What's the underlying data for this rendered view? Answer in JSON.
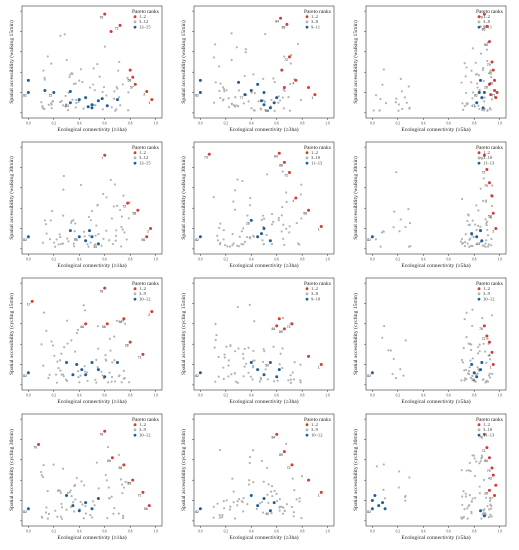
{
  "colors": {
    "red": "#d83a35",
    "gray": "#b3b3b3",
    "blue": "#1d5f9a",
    "text": "#222222"
  },
  "xticks": [
    "0.0",
    "0.2",
    "0.4",
    "0.6",
    "0.8",
    "1.0"
  ],
  "ytick_values": [
    0.0,
    0.2,
    0.4,
    0.6,
    0.8,
    1.0
  ],
  "chart_data": [
    {
      "type": "scatter",
      "xlabel": "Ecological connectivity (≥1ha)",
      "ylabel": "Spatial accessibility (walking 15min)",
      "legend_title": "Pareto ranks",
      "legend": [
        "1–2",
        "3–12",
        "13–15"
      ],
      "red": [
        [
          0.6,
          0.97
        ],
        [
          0.72,
          0.86
        ],
        [
          0.65,
          0.8
        ],
        [
          0.8,
          0.42
        ],
        [
          0.82,
          0.35
        ],
        [
          0.84,
          0.28
        ],
        [
          0.93,
          0.21
        ],
        [
          0.97,
          0.13
        ]
      ],
      "blue": [
        [
          0.0,
          0.32
        ],
        [
          0.0,
          0.2
        ],
        [
          0.13,
          0.22
        ],
        [
          0.2,
          0.2
        ],
        [
          0.33,
          0.21
        ],
        [
          0.33,
          0.1
        ],
        [
          0.4,
          0.13
        ],
        [
          0.45,
          0.15
        ],
        [
          0.5,
          0.08
        ],
        [
          0.55,
          0.12
        ],
        [
          0.58,
          0.14
        ],
        [
          0.62,
          0.07
        ],
        [
          0.7,
          0.13
        ],
        [
          0.5,
          0.05
        ],
        [
          0.47,
          0.06
        ]
      ],
      "labels": [
        [
          "76",
          0.6,
          0.97
        ],
        [
          "72",
          0.72,
          0.86
        ],
        [
          "57",
          0.84,
          0.28
        ],
        [
          "58",
          0.82,
          0.35
        ],
        [
          "2",
          0.93,
          0.21
        ],
        [
          "1",
          0.97,
          0.13
        ],
        [
          "82",
          0.0,
          0.2
        ],
        [
          "15",
          0.2,
          0.2
        ],
        [
          "53",
          0.33,
          0.1
        ]
      ]
    },
    {
      "type": "scatter",
      "xlabel": "Ecological connectivity (≥3ha)",
      "ylabel": "Spatial accessibility (walking 15min)",
      "legend_title": "Pareto ranks",
      "legend": [
        "1–2",
        "3–8",
        "9–11"
      ],
      "red": [
        [
          0.63,
          0.93
        ],
        [
          0.68,
          0.87
        ],
        [
          0.7,
          0.55
        ],
        [
          0.75,
          0.32
        ],
        [
          0.85,
          0.25
        ],
        [
          0.9,
          0.18
        ],
        [
          0.64,
          0.42
        ],
        [
          0.66,
          0.25
        ]
      ],
      "blue": [
        [
          0.0,
          0.32
        ],
        [
          0.0,
          0.2
        ],
        [
          0.3,
          0.3
        ],
        [
          0.35,
          0.18
        ],
        [
          0.4,
          0.22
        ],
        [
          0.45,
          0.28
        ],
        [
          0.48,
          0.12
        ],
        [
          0.5,
          0.2
        ],
        [
          0.55,
          0.05
        ],
        [
          0.58,
          0.1
        ],
        [
          0.6,
          0.15
        ],
        [
          0.5,
          0.08
        ]
      ],
      "labels": [
        [
          "84",
          0.63,
          0.93
        ],
        [
          "89",
          0.68,
          0.87
        ],
        [
          "72",
          0.7,
          0.55
        ],
        [
          "4",
          0.75,
          0.32
        ],
        [
          "1",
          0.9,
          0.18
        ],
        [
          "82",
          0.0,
          0.2
        ],
        [
          "60",
          0.55,
          0.05
        ],
        [
          "77",
          0.35,
          0.18
        ]
      ]
    },
    {
      "type": "scatter",
      "xlabel": "Ecological connectivity (≥5ha)",
      "ylabel": "Spatial accessibility (walking 15min)",
      "legend_title": "Pareto ranks",
      "legend": [
        "1–2",
        "3–8",
        "9–11"
      ],
      "red": [
        [
          0.88,
          0.97
        ],
        [
          0.9,
          0.85
        ],
        [
          0.92,
          0.7
        ],
        [
          0.94,
          0.5
        ],
        [
          0.95,
          0.42
        ],
        [
          0.96,
          0.32
        ],
        [
          0.92,
          0.28
        ],
        [
          0.96,
          0.22
        ],
        [
          0.98,
          0.2
        ],
        [
          0.93,
          0.18
        ],
        [
          0.97,
          0.15
        ]
      ],
      "blue": [
        [
          0.85,
          0.32
        ],
        [
          0.84,
          0.2
        ],
        [
          0.86,
          0.15
        ],
        [
          0.82,
          0.1
        ],
        [
          0.87,
          0.05
        ],
        [
          0.88,
          0.2
        ]
      ],
      "labels": [
        [
          "76",
          0.88,
          0.97
        ],
        [
          "85",
          0.9,
          0.85
        ],
        [
          "86",
          0.92,
          0.7
        ],
        [
          "79",
          0.94,
          0.5
        ],
        [
          "43",
          0.95,
          0.42
        ],
        [
          "58",
          0.96,
          0.32
        ],
        [
          "28",
          0.92,
          0.28
        ],
        [
          "71",
          0.98,
          0.2
        ],
        [
          "82",
          0.84,
          0.2
        ],
        [
          "67",
          0.82,
          0.1
        ]
      ]
    },
    {
      "type": "scatter",
      "xlabel": "Ecological connectivity (≥1ha)",
      "ylabel": "Spatial accessibility (walking 30min)",
      "legend_title": "Pareto ranks",
      "legend": [
        "1–2",
        "3–12",
        "13–15"
      ],
      "red": [
        [
          0.6,
          0.92
        ],
        [
          0.78,
          0.45
        ],
        [
          0.86,
          0.38
        ],
        [
          0.96,
          0.2
        ],
        [
          0.93,
          0.12
        ]
      ],
      "blue": [
        [
          0.0,
          0.12
        ],
        [
          0.33,
          0.18
        ],
        [
          0.4,
          0.12
        ],
        [
          0.45,
          0.08
        ],
        [
          0.5,
          0.12
        ],
        [
          0.55,
          0.05
        ],
        [
          0.48,
          0.18
        ]
      ],
      "labels": [
        [
          "7",
          0.6,
          0.92
        ],
        [
          "72",
          0.78,
          0.45
        ],
        [
          "58",
          0.86,
          0.38
        ],
        [
          "2",
          0.96,
          0.2
        ],
        [
          "56",
          0.93,
          0.12
        ],
        [
          "82",
          0.0,
          0.12
        ],
        [
          "34",
          0.55,
          0.05
        ],
        [
          "15",
          0.4,
          0.12
        ]
      ]
    },
    {
      "type": "scatter",
      "xlabel": "Ecological connectivity (≥3ha)",
      "ylabel": "Spatial accessibility (walking 30min)",
      "legend_title": "Pareto ranks",
      "legend": [
        "1–2",
        "3–10",
        "11–13"
      ],
      "red": [
        [
          0.07,
          0.93
        ],
        [
          0.62,
          0.94
        ],
        [
          0.66,
          0.85
        ],
        [
          0.7,
          0.75
        ],
        [
          0.75,
          0.5
        ],
        [
          0.85,
          0.38
        ],
        [
          0.95,
          0.22
        ]
      ],
      "blue": [
        [
          0.0,
          0.12
        ],
        [
          0.4,
          0.28
        ],
        [
          0.45,
          0.12
        ],
        [
          0.5,
          0.2
        ],
        [
          0.55,
          0.08
        ],
        [
          0.48,
          0.15
        ]
      ],
      "labels": [
        [
          "73",
          0.07,
          0.93
        ],
        [
          "84",
          0.62,
          0.94
        ],
        [
          "88",
          0.66,
          0.85
        ],
        [
          "72",
          0.7,
          0.75
        ],
        [
          "4",
          0.75,
          0.5
        ],
        [
          "58",
          0.85,
          0.38
        ],
        [
          "1",
          0.95,
          0.22
        ],
        [
          "82",
          0.0,
          0.12
        ],
        [
          "26",
          0.4,
          0.28
        ]
      ]
    },
    {
      "type": "scatter",
      "xlabel": "Ecological connectivity (≥5ha)",
      "ylabel": "Spatial accessibility (walking 30min)",
      "legend_title": "Pareto ranks",
      "legend": [
        "1–2",
        "3–10",
        "11–13"
      ],
      "red": [
        [
          0.88,
          0.92
        ],
        [
          0.9,
          0.78
        ],
        [
          0.92,
          0.65
        ],
        [
          0.94,
          0.52
        ],
        [
          0.95,
          0.35
        ],
        [
          0.97,
          0.2
        ]
      ],
      "blue": [
        [
          0.0,
          0.12
        ],
        [
          0.78,
          0.15
        ],
        [
          0.82,
          0.12
        ],
        [
          0.85,
          0.18
        ],
        [
          0.86,
          0.08
        ]
      ],
      "labels": [
        [
          "76",
          0.88,
          0.92
        ],
        [
          "72",
          0.9,
          0.78
        ],
        [
          "79",
          0.92,
          0.65
        ],
        [
          "58",
          0.95,
          0.35
        ],
        [
          "2",
          0.97,
          0.2
        ],
        [
          "82",
          0.0,
          0.12
        ],
        [
          "34",
          0.86,
          0.08
        ]
      ]
    },
    {
      "type": "scatter",
      "xlabel": "Ecological connectivity (≥1ha)",
      "ylabel": "Spatial accessibility (cycling 15min)",
      "legend_title": "Pareto ranks",
      "legend": [
        "1–2",
        "3–9",
        "10–12"
      ],
      "red": [
        [
          0.03,
          0.82
        ],
        [
          0.45,
          0.6
        ],
        [
          0.6,
          0.95
        ],
        [
          0.62,
          0.6
        ],
        [
          0.75,
          0.65
        ],
        [
          0.8,
          0.42
        ],
        [
          0.9,
          0.3
        ],
        [
          0.97,
          0.72
        ]
      ],
      "blue": [
        [
          0.0,
          0.12
        ],
        [
          0.3,
          0.22
        ],
        [
          0.35,
          0.1
        ],
        [
          0.38,
          0.2
        ],
        [
          0.42,
          0.15
        ],
        [
          0.45,
          0.1
        ],
        [
          0.5,
          0.22
        ],
        [
          0.55,
          0.15
        ],
        [
          0.6,
          0.08
        ],
        [
          0.7,
          0.22
        ]
      ],
      "labels": [
        [
          "17",
          0.03,
          0.82
        ],
        [
          "66",
          0.45,
          0.6
        ],
        [
          "76",
          0.6,
          0.95
        ],
        [
          "56",
          0.62,
          0.6
        ],
        [
          "58",
          0.75,
          0.65
        ],
        [
          "28",
          0.8,
          0.42
        ],
        [
          "71",
          0.9,
          0.3
        ],
        [
          "2",
          0.97,
          0.72
        ],
        [
          "82",
          0.0,
          0.12
        ]
      ]
    },
    {
      "type": "scatter",
      "xlabel": "Ecological connectivity (≥3ha)",
      "ylabel": "Spatial accessibility (cycling 15min)",
      "legend_title": "Pareto ranks",
      "legend": [
        "1–2",
        "3–8",
        "9–10"
      ],
      "red": [
        [
          0.6,
          0.58
        ],
        [
          0.62,
          0.65
        ],
        [
          0.66,
          0.55
        ],
        [
          0.72,
          0.6
        ],
        [
          0.85,
          0.28
        ],
        [
          0.95,
          0.2
        ]
      ],
      "blue": [
        [
          0.0,
          0.12
        ],
        [
          0.4,
          0.22
        ],
        [
          0.45,
          0.15
        ],
        [
          0.5,
          0.1
        ],
        [
          0.55,
          0.22
        ],
        [
          0.6,
          0.08
        ],
        [
          0.62,
          0.15
        ]
      ],
      "labels": [
        [
          "84",
          0.6,
          0.58
        ],
        [
          "89",
          0.66,
          0.55
        ],
        [
          "72",
          0.72,
          0.6
        ],
        [
          "1",
          0.95,
          0.2
        ],
        [
          "82",
          0.0,
          0.12
        ],
        [
          "50",
          0.55,
          0.22
        ]
      ]
    },
    {
      "type": "scatter",
      "xlabel": "Ecological connectivity (≥5ha)",
      "ylabel": "Spatial accessibility (cycling 15min)",
      "legend_title": "Pareto ranks",
      "legend": [
        "1–2",
        "3–9",
        "10–12"
      ],
      "red": [
        [
          0.88,
          0.58
        ],
        [
          0.9,
          0.48
        ],
        [
          0.92,
          0.42
        ],
        [
          0.94,
          0.32
        ],
        [
          0.95,
          0.2
        ]
      ],
      "blue": [
        [
          0.0,
          0.12
        ],
        [
          0.78,
          0.2
        ],
        [
          0.8,
          0.12
        ],
        [
          0.82,
          0.08
        ],
        [
          0.85,
          0.15
        ],
        [
          0.86,
          0.22
        ]
      ],
      "labels": [
        [
          "76",
          0.88,
          0.58
        ],
        [
          "72",
          0.9,
          0.48
        ],
        [
          "4",
          0.94,
          0.32
        ],
        [
          "1",
          0.95,
          0.2
        ],
        [
          "82",
          0.0,
          0.12
        ],
        [
          "56",
          0.82,
          0.08
        ]
      ]
    },
    {
      "type": "scatter",
      "xlabel": "Ecological connectivity (≥1ha)",
      "ylabel": "Spatial accessibility (cycling 30min)",
      "legend_title": "Pareto ranks",
      "legend": [
        "1–2",
        "3–9",
        "10–12"
      ],
      "red": [
        [
          0.08,
          0.75
        ],
        [
          0.6,
          0.88
        ],
        [
          0.66,
          0.62
        ],
        [
          0.75,
          0.55
        ],
        [
          0.82,
          0.4
        ],
        [
          0.9,
          0.28
        ],
        [
          0.95,
          0.15
        ]
      ],
      "blue": [
        [
          0.0,
          0.12
        ],
        [
          0.3,
          0.25
        ],
        [
          0.35,
          0.15
        ],
        [
          0.4,
          0.1
        ],
        [
          0.45,
          0.18
        ],
        [
          0.5,
          0.12
        ],
        [
          0.55,
          0.22
        ]
      ],
      "labels": [
        [
          "70",
          0.08,
          0.75
        ],
        [
          "76",
          0.6,
          0.88
        ],
        [
          "66",
          0.66,
          0.62
        ],
        [
          "58",
          0.75,
          0.55
        ],
        [
          "28",
          0.82,
          0.4
        ],
        [
          "71",
          0.9,
          0.28
        ],
        [
          "56",
          0.95,
          0.15
        ],
        [
          "82",
          0.0,
          0.12
        ]
      ]
    },
    {
      "type": "scatter",
      "xlabel": "Ecological connectivity (≥3ha)",
      "ylabel": "Spatial accessibility (cycling 30min)",
      "legend_title": "Pareto ranks",
      "legend": [
        "1–2",
        "3–9",
        "10–12"
      ],
      "red": [
        [
          0.6,
          0.85
        ],
        [
          0.66,
          0.68
        ],
        [
          0.72,
          0.55
        ],
        [
          0.85,
          0.4
        ],
        [
          0.95,
          0.28
        ]
      ],
      "blue": [
        [
          0.0,
          0.12
        ],
        [
          0.4,
          0.25
        ],
        [
          0.45,
          0.15
        ],
        [
          0.5,
          0.22
        ],
        [
          0.55,
          0.1
        ],
        [
          0.58,
          0.18
        ]
      ],
      "labels": [
        [
          "84",
          0.6,
          0.85
        ],
        [
          "89",
          0.66,
          0.68
        ],
        [
          "72",
          0.72,
          0.55
        ],
        [
          "1",
          0.95,
          0.28
        ],
        [
          "82",
          0.0,
          0.12
        ],
        [
          "45",
          0.55,
          0.1
        ]
      ]
    },
    {
      "type": "scatter",
      "xlabel": "Ecological connectivity (≥5ha)",
      "ylabel": "Spatial accessibility (cycling 30min)",
      "legend_title": "Pareto ranks",
      "legend": [
        "1–2",
        "3–10",
        "11–13"
      ],
      "red": [
        [
          0.88,
          0.85
        ],
        [
          0.9,
          0.72
        ],
        [
          0.92,
          0.62
        ],
        [
          0.94,
          0.52
        ],
        [
          0.95,
          0.45
        ],
        [
          0.97,
          0.35
        ],
        [
          0.92,
          0.3
        ],
        [
          0.96,
          0.25
        ]
      ],
      "blue": [
        [
          0.0,
          0.12
        ],
        [
          0.0,
          0.2
        ],
        [
          0.02,
          0.25
        ],
        [
          0.05,
          0.15
        ],
        [
          0.08,
          0.18
        ],
        [
          0.1,
          0.12
        ],
        [
          0.85,
          0.1
        ],
        [
          0.88,
          0.05
        ]
      ],
      "labels": [
        [
          "76",
          0.88,
          0.85
        ],
        [
          "72",
          0.9,
          0.72
        ],
        [
          "86",
          0.92,
          0.62
        ],
        [
          "79",
          0.94,
          0.52
        ],
        [
          "43",
          0.95,
          0.45
        ],
        [
          "28",
          0.92,
          0.3
        ],
        [
          "67",
          0.96,
          0.25
        ],
        [
          "82",
          0.0,
          0.12
        ]
      ]
    }
  ]
}
